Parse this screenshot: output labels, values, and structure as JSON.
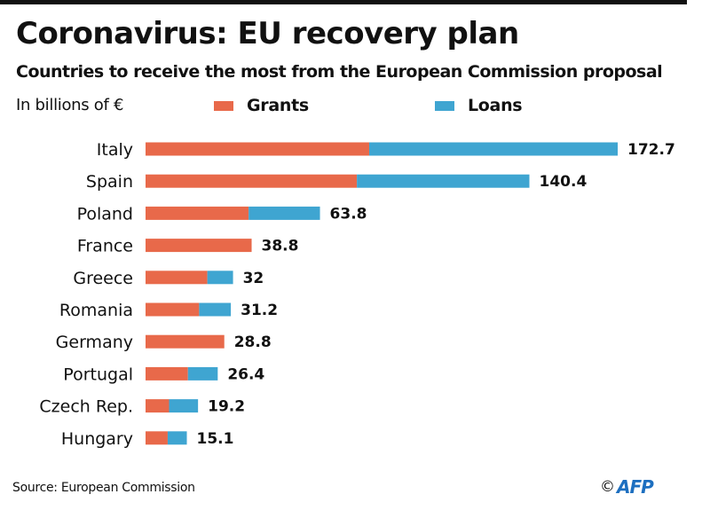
{
  "header": {
    "title": "Coronavirus: EU recovery plan",
    "subtitle": "Countries to receive the most from the European Commission proposal",
    "unit": "In billions of €"
  },
  "legend": [
    {
      "label": "Grants",
      "color": "#e8694a"
    },
    {
      "label": "Loans",
      "color": "#3fa5d1"
    }
  ],
  "chart_data": {
    "type": "bar",
    "orientation": "horizontal",
    "stacked": true,
    "title": "Coronavirus: EU recovery plan",
    "subtitle": "Countries to receive the most from the European Commission proposal",
    "xlabel": "In billions of €",
    "ylabel": "",
    "xlim": [
      0,
      172.7
    ],
    "grid": false,
    "legend_position": "top",
    "categories": [
      "Italy",
      "Spain",
      "Poland",
      "France",
      "Greece",
      "Romania",
      "Germany",
      "Portugal",
      "Czech Rep.",
      "Hungary"
    ],
    "series": [
      {
        "name": "Grants",
        "color": "#e8694a",
        "values": [
          81.8,
          77.3,
          37.7,
          38.8,
          22.6,
          19.6,
          28.8,
          15.5,
          8.6,
          8.1
        ]
      },
      {
        "name": "Loans",
        "color": "#3fa5d1",
        "values": [
          90.9,
          63.1,
          26.1,
          0,
          9.4,
          11.6,
          0,
          10.9,
          10.6,
          7.0
        ]
      }
    ],
    "totals": [
      172.7,
      140.4,
      63.8,
      38.8,
      32,
      31.2,
      28.8,
      26.4,
      19.2,
      15.1
    ],
    "total_labels": [
      "172.7",
      "140.4",
      "63.8",
      "38.8",
      "32",
      "31.2",
      "28.8",
      "26.4",
      "19.2",
      "15.1"
    ]
  },
  "footer": {
    "source": "Source: European Commission",
    "copyright_symbol": "©",
    "logo": "AFP"
  }
}
